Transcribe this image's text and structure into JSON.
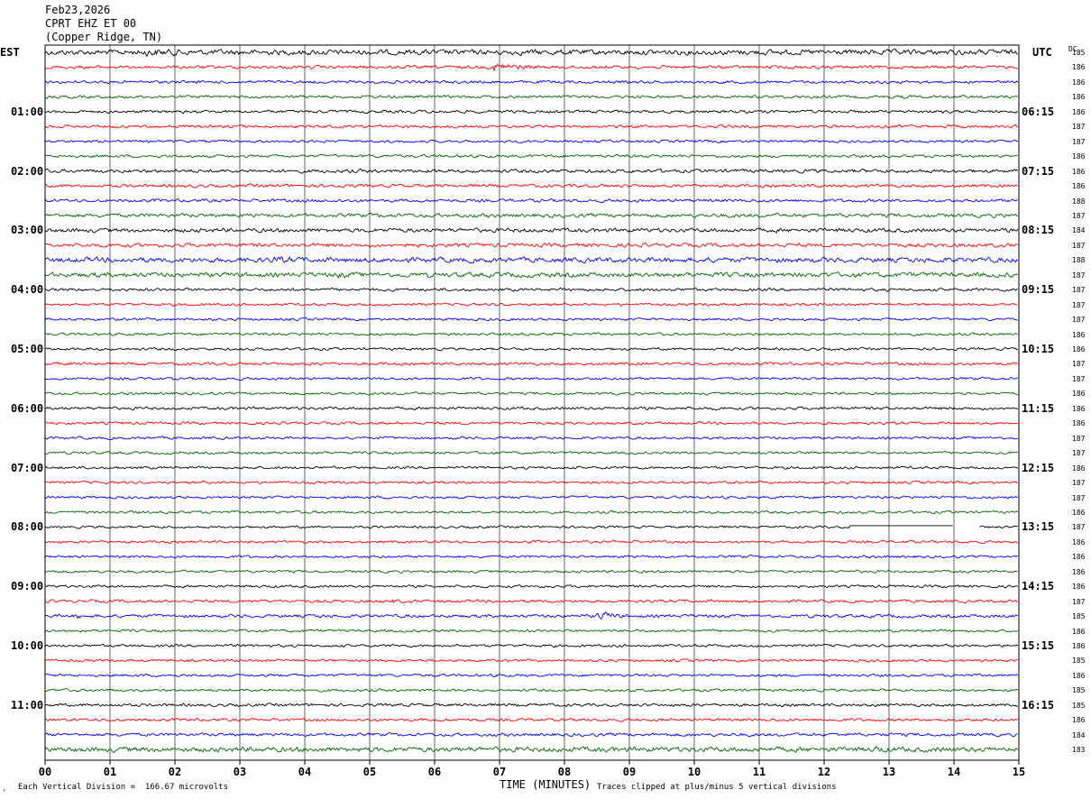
{
  "header": {
    "date": "Feb23,2026",
    "station": "CPRT EHZ ET 00",
    "location": "(Copper Ridge, TN)"
  },
  "left_zone": "EST",
  "right_zone": "UTC",
  "dc_label": "DC",
  "footer": {
    "scale_note": "Each Vertical Division =  166.67 microvolts",
    "clip_note": "Traces clipped at plus/minus 5 vertical divisions",
    "corner_mark": "."
  },
  "chart_data": {
    "type": "line",
    "title": "",
    "xlabel": "TIME (MINUTES)",
    "xlim": [
      0,
      15
    ],
    "x_ticks": [
      "00",
      "01",
      "02",
      "03",
      "04",
      "05",
      "06",
      "07",
      "08",
      "09",
      "10",
      "11",
      "12",
      "13",
      "14",
      "15"
    ],
    "rows": 48,
    "trace_colors": [
      "#000000",
      "#ff0000",
      "#0000ff",
      "#006400"
    ],
    "grid": "vertical lines each minute",
    "left_hour_labels": [
      {
        "row": 0,
        "label": "EST"
      },
      {
        "row": 4,
        "label": "01:00"
      },
      {
        "row": 8,
        "label": "02:00"
      },
      {
        "row": 12,
        "label": "03:00"
      },
      {
        "row": 16,
        "label": "04:00"
      },
      {
        "row": 20,
        "label": "05:00"
      },
      {
        "row": 24,
        "label": "06:00"
      },
      {
        "row": 28,
        "label": "07:00"
      },
      {
        "row": 32,
        "label": "08:00"
      },
      {
        "row": 36,
        "label": "09:00"
      },
      {
        "row": 40,
        "label": "10:00"
      },
      {
        "row": 44,
        "label": "11:00"
      }
    ],
    "right_hour_labels": [
      {
        "row": 0,
        "label": "UTC"
      },
      {
        "row": 4,
        "label": "06:15"
      },
      {
        "row": 8,
        "label": "07:15"
      },
      {
        "row": 12,
        "label": "08:15"
      },
      {
        "row": 16,
        "label": "09:15"
      },
      {
        "row": 20,
        "label": "10:15"
      },
      {
        "row": 24,
        "label": "11:15"
      },
      {
        "row": 28,
        "label": "12:15"
      },
      {
        "row": 32,
        "label": "13:15"
      },
      {
        "row": 36,
        "label": "14:15"
      },
      {
        "row": 40,
        "label": "15:15"
      },
      {
        "row": 44,
        "label": "16:15"
      }
    ],
    "dc_offsets": [
      "185",
      "186",
      "186",
      "186",
      "186",
      "187",
      "187",
      "186",
      "186",
      "186",
      "188",
      "187",
      "184",
      "187",
      "188",
      "187",
      "187",
      "187",
      "187",
      "186",
      "186",
      "187",
      "187",
      "186",
      "186",
      "186",
      "187",
      "187",
      "186",
      "187",
      "187",
      "186",
      "187",
      "186",
      "186",
      "186",
      "186",
      "187",
      "185",
      "186",
      "186",
      "185",
      "186",
      "185",
      "185",
      "186",
      "184",
      "183"
    ],
    "amplitude": [
      1.8,
      1.1,
      1.0,
      1.0,
      1.0,
      1.0,
      0.9,
      1.0,
      1.2,
      1.1,
      1.1,
      1.3,
      1.4,
      1.3,
      1.7,
      1.6,
      1.0,
      0.9,
      0.9,
      0.9,
      0.9,
      1.0,
      0.9,
      0.9,
      1.0,
      0.9,
      0.9,
      0.9,
      0.9,
      0.9,
      0.9,
      0.9,
      0.8,
      0.9,
      0.9,
      0.9,
      0.9,
      1.0,
      1.1,
      0.9,
      0.9,
      0.9,
      0.9,
      0.9,
      1.0,
      1.0,
      1.1,
      1.7
    ],
    "events": [
      {
        "row": 0,
        "minute_start": 1.5,
        "minute_end": 6.2,
        "gain": 1.6
      },
      {
        "row": 1,
        "minute_start": 6.9,
        "minute_end": 8.2,
        "gain": 3.5
      },
      {
        "row": 3,
        "minute_start": 13.2,
        "minute_end": 13.8,
        "gain": 1.5
      },
      {
        "row": 14,
        "minute_start": 3.5,
        "minute_end": 6.5,
        "gain": 1.5
      },
      {
        "row": 15,
        "minute_start": 4.5,
        "minute_end": 6.0,
        "gain": 1.5
      },
      {
        "row": 25,
        "minute_start": 8.1,
        "minute_end": 8.5,
        "gain": 1.4
      },
      {
        "row": 37,
        "minute_start": 3.2,
        "minute_end": 3.5,
        "gain": 2.2
      },
      {
        "row": 37,
        "minute_start": 5.3,
        "minute_end": 6.0,
        "gain": 2.0
      },
      {
        "row": 38,
        "minute_start": 0.5,
        "minute_end": 0.8,
        "gain": 2.0
      },
      {
        "row": 38,
        "minute_start": 8.5,
        "minute_end": 9.2,
        "gain": 4.0
      },
      {
        "row": 47,
        "minute_start": 12.8,
        "minute_end": 13.5,
        "gain": 1.8
      }
    ],
    "flat_segments": [
      {
        "row": 32,
        "minute_start": 12.4,
        "minute_end": 14.0
      },
      {
        "row": 32,
        "minute_start": 14.0,
        "minute_end": 14.4,
        "gap": true
      }
    ]
  }
}
